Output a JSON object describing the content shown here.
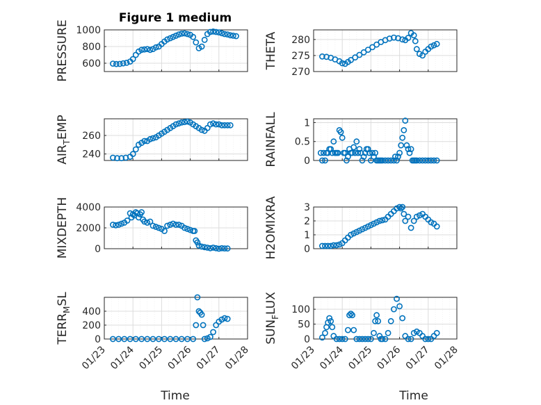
{
  "figure": {
    "title": "Figure 1 medium",
    "xlabel": "Time"
  },
  "style": {
    "marker_color": "#0072bd",
    "grid_color": "#dcdcdc",
    "axis_color": "#262626"
  },
  "chart_data": [
    {
      "id": "pressure",
      "type": "scatter",
      "marker": "circle",
      "ylabel": "PRESSURE",
      "ylabel_sub": "",
      "xlim": [
        "01/23",
        "01/28"
      ],
      "ylim": [
        500,
        1000
      ],
      "yticks": [
        600,
        800,
        1000
      ],
      "ytick_labels": [
        "600",
        "800",
        "1000"
      ],
      "xtick_labels": [
        "01/23",
        "01/24",
        "01/25",
        "01/26",
        "01/27",
        "01/28"
      ],
      "show_xticklabels": false,
      "grid": true,
      "minor_grid": true,
      "x": [
        0.3,
        0.42,
        0.54,
        0.66,
        0.78,
        0.9,
        1.0,
        1.1,
        1.2,
        1.3,
        1.4,
        1.5,
        1.6,
        1.7,
        1.8,
        1.9,
        2.0,
        2.1,
        2.2,
        2.3,
        2.4,
        2.5,
        2.6,
        2.7,
        2.8,
        2.9,
        3.0,
        3.1,
        3.2,
        3.3,
        3.4,
        3.5,
        3.6,
        3.7,
        3.8,
        3.9,
        4.0,
        4.1,
        4.2,
        4.3,
        4.4,
        4.5,
        4.6
      ],
      "y": [
        595,
        590,
        592,
        598,
        605,
        620,
        650,
        700,
        740,
        760,
        765,
        770,
        760,
        770,
        790,
        800,
        830,
        860,
        885,
        900,
        915,
        930,
        945,
        955,
        958,
        950,
        940,
        915,
        850,
        780,
        800,
        880,
        950,
        975,
        980,
        975,
        970,
        960,
        950,
        945,
        935,
        930,
        925
      ]
    },
    {
      "id": "theta",
      "type": "scatter",
      "marker": "circle",
      "ylabel": "THETA",
      "ylabel_sub": "",
      "xlim": [
        "01/23",
        "01/28"
      ],
      "ylim": [
        270,
        283
      ],
      "yticks": [
        270,
        275,
        280
      ],
      "ytick_labels": [
        "270",
        "275",
        "280"
      ],
      "xtick_labels": [
        "01/23",
        "01/24",
        "01/25",
        "01/26",
        "01/27",
        "01/28"
      ],
      "show_xticklabels": false,
      "grid": true,
      "minor_grid": true,
      "x": [
        0.3,
        0.45,
        0.6,
        0.75,
        0.9,
        1.0,
        1.1,
        1.2,
        1.3,
        1.45,
        1.6,
        1.75,
        1.9,
        2.05,
        2.2,
        2.35,
        2.5,
        2.65,
        2.8,
        2.95,
        3.1,
        3.2,
        3.3,
        3.4,
        3.5,
        3.55,
        3.6,
        3.7,
        3.8,
        3.9,
        4.0,
        4.1,
        4.2,
        4.3
      ],
      "y": [
        274.7,
        274.6,
        274.3,
        273.8,
        273.2,
        272.6,
        272.4,
        273.0,
        273.6,
        274.4,
        275.2,
        276.0,
        276.8,
        277.6,
        278.4,
        279.2,
        279.8,
        280.3,
        280.6,
        280.4,
        280.0,
        279.8,
        280.5,
        282.0,
        281.3,
        279.5,
        277.0,
        275.5,
        275.0,
        276.2,
        277.0,
        277.8,
        278.2,
        278.6
      ]
    },
    {
      "id": "air_temp",
      "type": "scatter",
      "marker": "circle",
      "ylabel": "AIR",
      "ylabel_sub": "T",
      "ylabel_tail": "EMP",
      "xlim": [
        "01/23",
        "01/28"
      ],
      "ylim": [
        233,
        278
      ],
      "yticks": [
        240,
        260
      ],
      "ytick_labels": [
        "240",
        "260"
      ],
      "xtick_labels": [
        "01/23",
        "01/24",
        "01/25",
        "01/26",
        "01/27",
        "01/28"
      ],
      "show_xticklabels": false,
      "grid": true,
      "minor_grid": true,
      "x": [
        0.3,
        0.45,
        0.6,
        0.75,
        0.9,
        1.0,
        1.1,
        1.2,
        1.3,
        1.4,
        1.5,
        1.6,
        1.7,
        1.8,
        1.9,
        2.0,
        2.1,
        2.2,
        2.3,
        2.4,
        2.5,
        2.6,
        2.7,
        2.8,
        2.9,
        3.0,
        3.1,
        3.2,
        3.3,
        3.4,
        3.5,
        3.6,
        3.7,
        3.8,
        3.9,
        4.0,
        4.1,
        4.2,
        4.3,
        4.4
      ],
      "y": [
        236,
        235.5,
        235.5,
        236,
        237,
        240,
        245,
        250,
        252,
        254,
        254,
        256,
        257,
        258,
        260,
        262,
        264,
        266,
        268,
        270,
        272,
        273,
        274,
        274.5,
        275,
        274,
        272,
        270,
        268,
        266,
        265,
        268,
        272,
        273,
        272,
        272,
        271,
        271,
        271,
        271
      ]
    },
    {
      "id": "rainfall",
      "type": "scatter",
      "marker": "circle",
      "ylabel": "RAINFALL",
      "ylabel_sub": "",
      "xlim": [
        "01/23",
        "01/28"
      ],
      "ylim": [
        0,
        1.1
      ],
      "yticks": [
        0,
        0.5,
        1
      ],
      "ytick_labels": [
        "0",
        "0.5",
        "1"
      ],
      "xtick_labels": [
        "01/23",
        "01/24",
        "01/25",
        "01/26",
        "01/27",
        "01/28"
      ],
      "show_xticklabels": false,
      "grid": true,
      "minor_grid": true,
      "x": [
        0.25,
        0.3,
        0.35,
        0.4,
        0.45,
        0.5,
        0.55,
        0.6,
        0.65,
        0.7,
        0.75,
        0.8,
        0.85,
        0.9,
        0.95,
        1.0,
        1.05,
        1.1,
        1.15,
        1.2,
        1.25,
        1.3,
        1.35,
        1.4,
        1.45,
        1.5,
        1.55,
        1.6,
        1.65,
        1.7,
        1.75,
        1.8,
        1.85,
        1.9,
        1.95,
        2.0,
        2.05,
        2.1,
        2.15,
        2.2,
        2.25,
        2.3,
        2.35,
        2.4,
        2.5,
        2.6,
        2.7,
        2.8,
        2.85,
        2.9,
        2.95,
        3.0,
        3.05,
        3.1,
        3.15,
        3.2,
        3.25,
        3.3,
        3.35,
        3.4,
        3.45,
        3.5,
        3.55,
        3.6,
        3.7,
        3.8,
        3.9,
        4.0,
        4.1,
        4.2,
        4.3
      ],
      "y": [
        0.2,
        0,
        0.2,
        0,
        0.2,
        0.2,
        0.3,
        0.3,
        0.2,
        0.5,
        0.2,
        0.2,
        0.2,
        0.8,
        0.75,
        0.6,
        0.2,
        0.2,
        0,
        0.1,
        0.3,
        0.2,
        0.2,
        0.35,
        0.2,
        0.5,
        0.2,
        0.3,
        0.2,
        0,
        0.1,
        0.2,
        0.3,
        0.3,
        0.2,
        0,
        0.2,
        0.1,
        0.2,
        0,
        0,
        0,
        0,
        0,
        0,
        0,
        0,
        0,
        0.1,
        0,
        0.1,
        0.2,
        0.4,
        0.6,
        0.8,
        1.05,
        0.4,
        0.3,
        0.2,
        0.3,
        0,
        0,
        0,
        0,
        0,
        0,
        0,
        0,
        0,
        0,
        0
      ]
    },
    {
      "id": "mixdepth",
      "type": "scatter",
      "marker": "circle",
      "ylabel": "MIXDEPTH",
      "ylabel_sub": "",
      "xlim": [
        "01/23",
        "01/28"
      ],
      "ylim": [
        0,
        4000
      ],
      "yticks": [
        0,
        2000,
        4000
      ],
      "ytick_labels": [
        "0",
        "2000",
        "4000"
      ],
      "xtick_labels": [
        "01/23",
        "01/24",
        "01/25",
        "01/26",
        "01/27",
        "01/28"
      ],
      "show_xticklabels": false,
      "grid": true,
      "minor_grid": true,
      "x": [
        0.3,
        0.4,
        0.5,
        0.6,
        0.7,
        0.8,
        0.9,
        0.95,
        1.0,
        1.05,
        1.1,
        1.15,
        1.2,
        1.25,
        1.3,
        1.35,
        1.4,
        1.5,
        1.6,
        1.7,
        1.8,
        1.9,
        2.0,
        2.1,
        2.2,
        2.3,
        2.4,
        2.5,
        2.6,
        2.7,
        2.8,
        2.9,
        3.0,
        3.1,
        3.15,
        3.2,
        3.25,
        3.3,
        3.4,
        3.5,
        3.6,
        3.7,
        3.8,
        3.9,
        4.0,
        4.1,
        4.2,
        4.3
      ],
      "y": [
        2300,
        2250,
        2300,
        2400,
        2500,
        2700,
        3400,
        3000,
        3300,
        3200,
        3500,
        3400,
        3000,
        3300,
        3500,
        2800,
        2600,
        2500,
        2600,
        2200,
        2100,
        2000,
        1900,
        1700,
        2200,
        2300,
        2400,
        2300,
        2300,
        2200,
        2000,
        1900,
        1800,
        1700,
        1700,
        800,
        600,
        300,
        200,
        150,
        100,
        50,
        100,
        50,
        0,
        50,
        30,
        20
      ]
    },
    {
      "id": "h2omixra",
      "type": "scatter",
      "marker": "circle",
      "ylabel": "H2OMIXRA",
      "ylabel_sub": "",
      "xlim": [
        "01/23",
        "01/28"
      ],
      "ylim": [
        0,
        3
      ],
      "yticks": [
        0,
        1,
        2,
        3
      ],
      "ytick_labels": [
        "0",
        "1",
        "2",
        "3"
      ],
      "xtick_labels": [
        "01/23",
        "01/24",
        "01/25",
        "01/26",
        "01/27",
        "01/28"
      ],
      "show_xticklabels": false,
      "grid": true,
      "minor_grid": true,
      "x": [
        0.3,
        0.4,
        0.5,
        0.6,
        0.7,
        0.8,
        0.9,
        1.0,
        1.1,
        1.2,
        1.3,
        1.4,
        1.5,
        1.6,
        1.7,
        1.8,
        1.9,
        2.0,
        2.1,
        2.2,
        2.3,
        2.4,
        2.5,
        2.6,
        2.7,
        2.8,
        2.9,
        3.0,
        3.05,
        3.1,
        3.15,
        3.2,
        3.3,
        3.4,
        3.5,
        3.6,
        3.7,
        3.8,
        3.9,
        4.0,
        4.1,
        4.2,
        4.3
      ],
      "y": [
        0.2,
        0.2,
        0.2,
        0.2,
        0.25,
        0.25,
        0.3,
        0.4,
        0.6,
        0.8,
        1.0,
        1.1,
        1.2,
        1.3,
        1.4,
        1.5,
        1.6,
        1.7,
        1.8,
        1.9,
        2.0,
        2.05,
        2.1,
        2.3,
        2.5,
        2.7,
        2.9,
        3.0,
        2.9,
        3.0,
        2.5,
        2.0,
        2.3,
        1.5,
        2.0,
        2.3,
        2.4,
        2.5,
        2.3,
        2.1,
        1.9,
        1.8,
        1.6
      ]
    },
    {
      "id": "terr_msl",
      "type": "scatter",
      "marker": "circle",
      "ylabel": "TERR",
      "ylabel_sub": "M",
      "ylabel_tail": "SL",
      "xlim": [
        "01/23",
        "01/28"
      ],
      "ylim": [
        0,
        600
      ],
      "yticks": [
        0,
        200,
        400
      ],
      "ytick_labels": [
        "0",
        "200",
        "400"
      ],
      "xtick_labels": [
        "01/23",
        "01/24",
        "01/25",
        "01/26",
        "01/27",
        "01/28"
      ],
      "show_xticklabels": true,
      "grid": true,
      "minor_grid": true,
      "x": [
        0.3,
        0.5,
        0.7,
        0.9,
        1.1,
        1.3,
        1.5,
        1.7,
        1.9,
        2.1,
        2.3,
        2.5,
        2.7,
        2.9,
        3.1,
        3.2,
        3.25,
        3.3,
        3.35,
        3.4,
        3.45,
        3.5,
        3.6,
        3.7,
        3.8,
        3.9,
        4.0,
        4.1,
        4.2,
        4.3
      ],
      "y": [
        0,
        0,
        0,
        0,
        0,
        0,
        0,
        0,
        0,
        0,
        0,
        0,
        0,
        0,
        0,
        200,
        600,
        400,
        380,
        350,
        200,
        0,
        10,
        30,
        100,
        200,
        250,
        280,
        300,
        290
      ]
    },
    {
      "id": "sun_flux",
      "type": "scatter",
      "marker": "circle",
      "ylabel": "SUN",
      "ylabel_sub": "F",
      "ylabel_tail": "LUX",
      "xlim": [
        "01/23",
        "01/28"
      ],
      "ylim": [
        0,
        140
      ],
      "yticks": [
        0,
        50,
        100
      ],
      "ytick_labels": [
        "0",
        "50",
        "100"
      ],
      "xtick_labels": [
        "01/23",
        "01/24",
        "01/25",
        "01/26",
        "01/27",
        "01/28"
      ],
      "show_xticklabels": true,
      "grid": true,
      "minor_grid": true,
      "x": [
        0.3,
        0.4,
        0.45,
        0.5,
        0.55,
        0.6,
        0.65,
        0.7,
        0.8,
        0.9,
        1.0,
        1.1,
        1.2,
        1.25,
        1.3,
        1.35,
        1.4,
        1.5,
        1.6,
        1.7,
        1.8,
        1.9,
        2.0,
        2.1,
        2.15,
        2.2,
        2.25,
        2.3,
        2.35,
        2.4,
        2.5,
        2.6,
        2.7,
        2.8,
        2.9,
        3.0,
        3.1,
        3.2,
        3.3,
        3.4,
        3.5,
        3.6,
        3.7,
        3.8,
        3.9,
        4.0,
        4.1,
        4.2,
        4.3
      ],
      "y": [
        5,
        20,
        40,
        55,
        70,
        60,
        40,
        10,
        0,
        0,
        0,
        0,
        30,
        80,
        85,
        80,
        30,
        0,
        0,
        0,
        0,
        0,
        0,
        20,
        60,
        80,
        60,
        10,
        0,
        0,
        0,
        20,
        60,
        100,
        135,
        110,
        70,
        10,
        0,
        0,
        20,
        25,
        20,
        10,
        0,
        0,
        0,
        10,
        20
      ]
    }
  ]
}
